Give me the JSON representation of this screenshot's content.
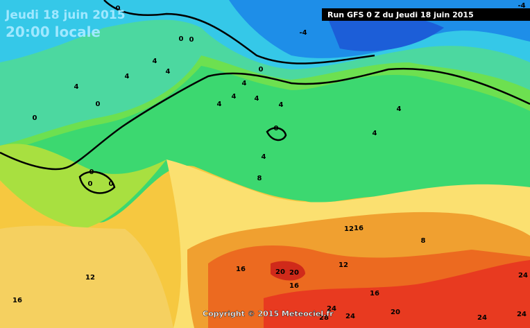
{
  "header": {
    "date": "Jeudi 18 juin 2015",
    "time": "20:00 locale",
    "run": "Run GFS 0 Z du Jeudi 18 juin 2015"
  },
  "footer": {
    "copyright": "Copyright © 2015 Meteociel.fr"
  },
  "contour_labels": [
    0,
    -4,
    -4,
    0,
    0,
    4,
    4,
    4,
    4,
    0,
    0,
    0,
    4,
    4,
    4,
    4,
    4,
    0,
    4,
    8,
    4,
    4,
    0,
    0,
    0,
    12,
    16,
    8,
    16,
    20,
    20,
    16,
    12,
    12,
    16,
    16,
    20,
    24,
    28,
    24,
    24,
    24,
    24
  ]
}
